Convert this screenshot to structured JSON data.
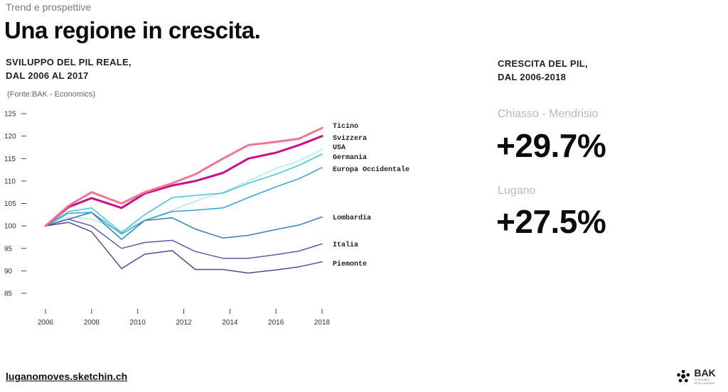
{
  "header": {
    "kicker": "Trend e prospettive",
    "title": "Una regione in crescita."
  },
  "chart_section": {
    "heading_line1": "SVILUPPO DEL PIL REALE,",
    "heading_line2": "DAL 2006 AL 2017",
    "source": "(Fonte:BAK - Economics)"
  },
  "chart_data": {
    "type": "line",
    "x": [
      2006,
      2007,
      2008,
      2009.3,
      2010.3,
      2011.5,
      2012.5,
      2013.7,
      2014.8,
      2016,
      2017,
      2018
    ],
    "xticks": [
      2006,
      2008,
      2010,
      2012,
      2014,
      2016,
      2018
    ],
    "yticks": [
      85,
      90,
      95,
      100,
      105,
      110,
      115,
      120,
      125
    ],
    "xlim": [
      2006,
      2018
    ],
    "ylim": [
      85,
      125
    ],
    "grid": false,
    "series": [
      {
        "name": "Ticino",
        "color": "#f2768f",
        "width": 3,
        "values": [
          100,
          104.5,
          107.5,
          105,
          107.5,
          109.5,
          111.5,
          115,
          118,
          118.7,
          119.4,
          121.8
        ]
      },
      {
        "name": "Svizzera",
        "color": "#cc0e8a",
        "width": 3,
        "values": [
          100,
          104.2,
          106.2,
          104,
          107.2,
          109,
          110,
          111.8,
          115,
          116.3,
          118,
          120
        ]
      },
      {
        "name": "USA",
        "color": "#b8eadc",
        "width": 1.5,
        "values": [
          100,
          102,
          101.5,
          98.8,
          101.2,
          103.5,
          105.5,
          107.5,
          110,
          112.8,
          114.5,
          117
        ]
      },
      {
        "name": "Germania",
        "color": "#3cc7d6",
        "width": 1.5,
        "values": [
          100,
          103.2,
          104,
          98.5,
          102.5,
          106.3,
          106.8,
          107.3,
          109.5,
          111.5,
          113.5,
          116
        ]
      },
      {
        "name": "Europa Occidentale",
        "color": "#2ea4d4",
        "width": 1.5,
        "values": [
          100,
          102.8,
          103,
          98.2,
          101.2,
          103.2,
          103.5,
          104,
          106.3,
          108.7,
          110.5,
          113
        ]
      },
      {
        "name": "Lombardia",
        "color": "#2f7fbd",
        "width": 1.5,
        "values": [
          100,
          101.5,
          103,
          97,
          101.2,
          101.8,
          99.3,
          97.3,
          97.9,
          99.2,
          100.2,
          102
        ]
      },
      {
        "name": "Italia",
        "color": "#5b5ba6",
        "width": 1.5,
        "values": [
          100,
          101.5,
          100,
          95,
          96.3,
          96.8,
          94.3,
          92.8,
          92.8,
          93.6,
          94.4,
          96
        ]
      },
      {
        "name": "Piemonte",
        "color": "#4f4a93",
        "width": 1.5,
        "values": [
          100,
          100.8,
          98.7,
          90.5,
          93.7,
          94.5,
          90.3,
          90.3,
          89.5,
          90.2,
          90.9,
          92
        ]
      }
    ]
  },
  "kpi_section": {
    "heading_line1": "CRESCITA DEL PIL,",
    "heading_line2": "DAL 2006-2018",
    "items": [
      {
        "region": "Chiasso - Mendrisio",
        "value": "+29.7%"
      },
      {
        "region": "Lugano",
        "value": "+27.5%"
      }
    ]
  },
  "footer": {
    "link": "luganomoves.sketchin.ch",
    "logo_text": "BAK",
    "logo_sub": "ECONOMIC INTELLIGENCE"
  }
}
